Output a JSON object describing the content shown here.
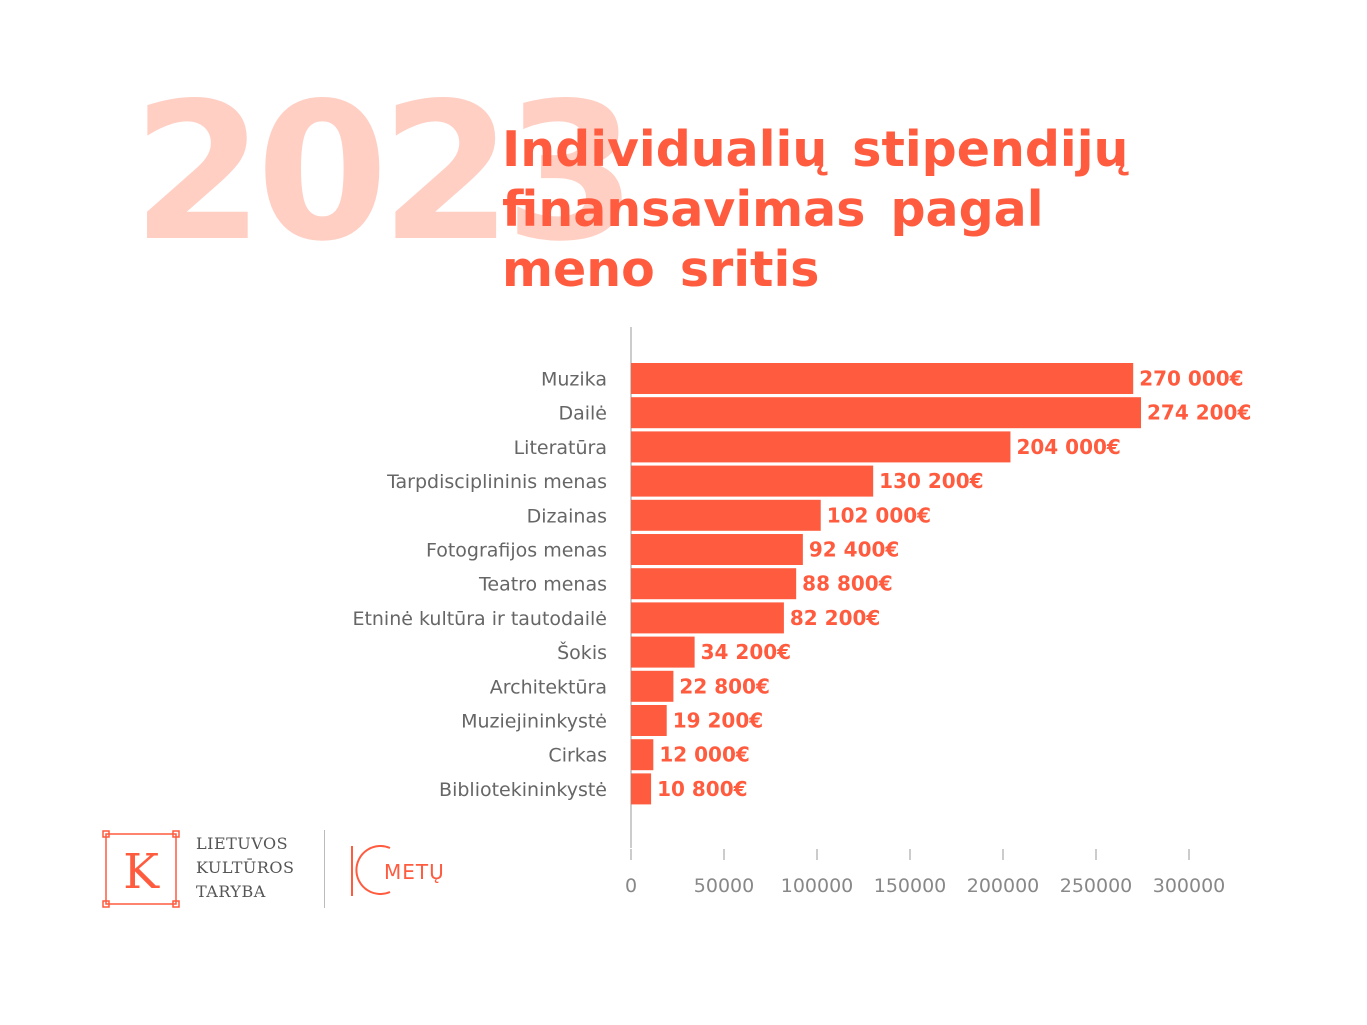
{
  "year": "2023",
  "title_lines": [
    "Individualių stipendijų",
    "finansavimas pagal",
    "meno sritis"
  ],
  "colors": {
    "accent": "#ff5b3f",
    "year_bg": "#ffcfc4",
    "label": "#666666",
    "axis": "#888888"
  },
  "logo": {
    "icon": "k-frame-icon",
    "letter": "K",
    "lines": [
      "LIETUVOS",
      "KULTŪROS",
      "TARYBA"
    ],
    "anniversary": "METŲ"
  },
  "chart_data": {
    "type": "bar",
    "orientation": "horizontal",
    "categories": [
      "Muzika",
      "Dailė",
      "Literatūra",
      "Tarpdisciplininis menas",
      "Dizainas",
      "Fotografijos menas",
      "Teatro menas",
      "Etninė kultūra ir tautodailė",
      "Šokis",
      "Architektūra",
      "Muziejininkystė",
      "Cirkas",
      "Bibliotekininkystė"
    ],
    "values": [
      270000,
      274200,
      204000,
      130200,
      102000,
      92400,
      88800,
      82200,
      34200,
      22800,
      19200,
      12000,
      10800
    ],
    "value_labels": [
      "270 000€",
      "274 200€",
      "204 000€",
      "130 200€",
      "102 000€",
      "92 400€",
      "88 800€",
      "82 200€",
      "34 200€",
      "22 800€",
      "19 200€",
      "12 000€",
      "10 800€"
    ],
    "xlim": [
      0,
      300000
    ],
    "xticks": [
      0,
      50000,
      100000,
      150000,
      200000,
      250000,
      300000
    ],
    "xtick_labels": [
      "0",
      "50000",
      "100000",
      "150000",
      "200000",
      "250000",
      "300000"
    ],
    "grid": false
  }
}
